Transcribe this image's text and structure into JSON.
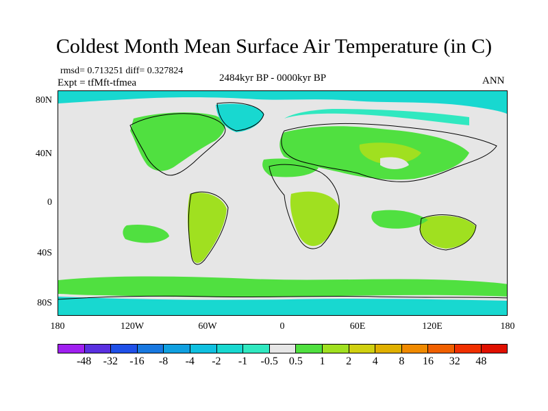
{
  "title": "Coldest Month Mean Surface Air Temperature (in C)",
  "stats": "rmsd= 0.713251 diff= 0.327824",
  "experiment": "Expt = tfMft-tfmea",
  "period": "2484kyr BP - 0000kyr BP",
  "season": "ANN",
  "latitude_labels": [
    "80N",
    "40N",
    "0",
    "40S",
    "80S"
  ],
  "longitude_labels": [
    "180",
    "120W",
    "60W",
    "0",
    "60E",
    "120E",
    "180"
  ],
  "colorbar": {
    "labels": [
      "-48",
      "-32",
      "-16",
      "-8",
      "-4",
      "-2",
      "-1",
      "-0.5",
      "0.5",
      "1",
      "2",
      "4",
      "8",
      "16",
      "32",
      "48"
    ],
    "colors": [
      "#a020f0",
      "#5a30e0",
      "#2050e8",
      "#1878e0",
      "#10a0e0",
      "#10c0e0",
      "#18d8d0",
      "#30e8c0",
      "#e6e6e6",
      "#50e040",
      "#a0e020",
      "#d0d010",
      "#e0b000",
      "#f08a00",
      "#f06000",
      "#f03000",
      "#e01000"
    ]
  },
  "palette": {
    "neutral": "#e6e6e6",
    "cyan": "#18d8d0",
    "light_cyan": "#30e8c0",
    "green": "#50e040",
    "yellow_green": "#a0e020",
    "yellow": "#d0d010"
  }
}
